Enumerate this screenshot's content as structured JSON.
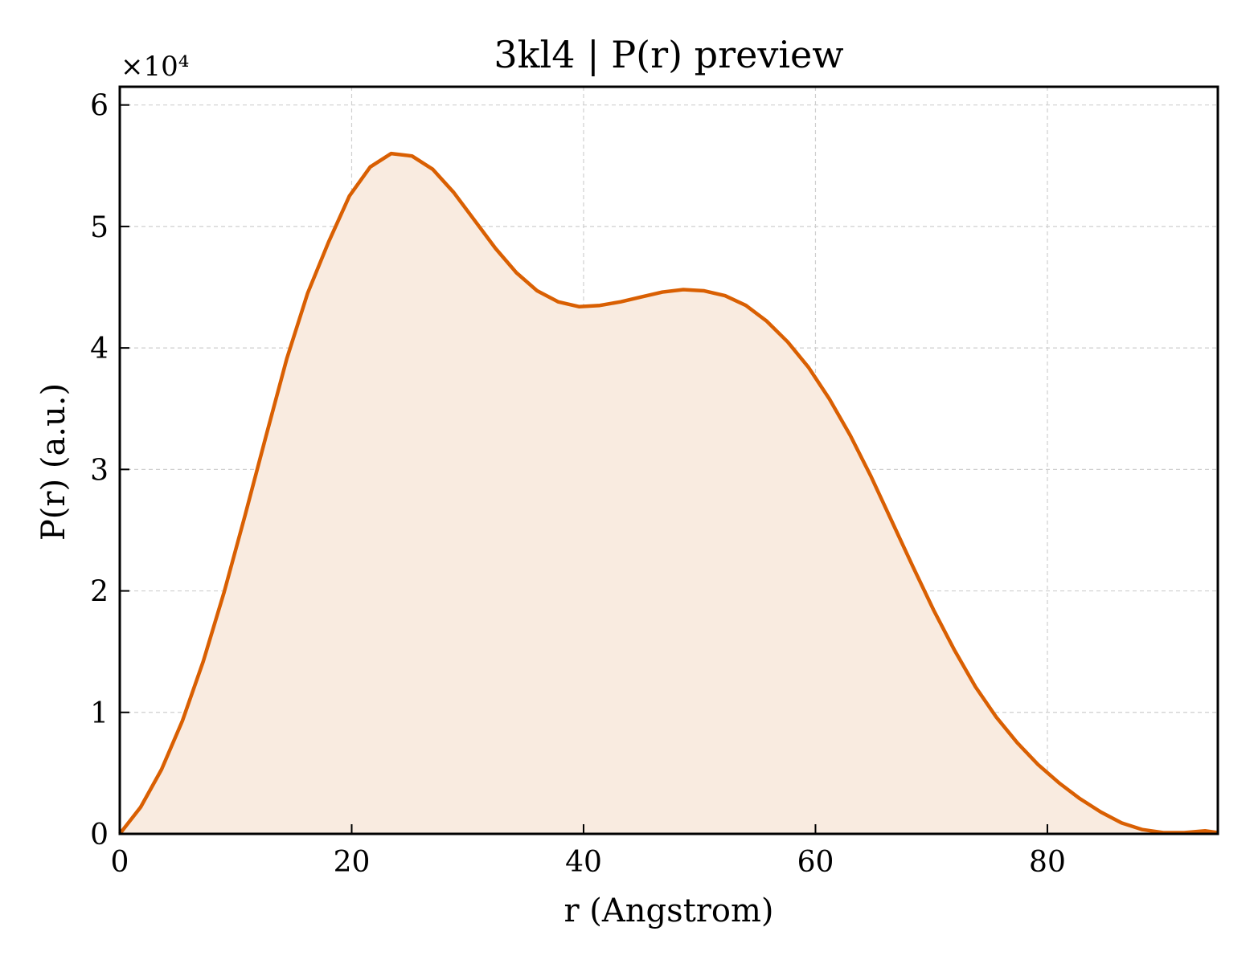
{
  "chart_data": {
    "type": "area",
    "title": "3kl4 | P(r) preview",
    "xlabel": "r (Angstrom)",
    "ylabel": "P(r) (a.u.)",
    "y_offset_label": "×10⁴",
    "xlim": [
      0,
      94.7
    ],
    "ylim": [
      0,
      6.15
    ],
    "xticks": [
      0,
      20,
      40,
      60,
      80
    ],
    "yticks": [
      0,
      1,
      2,
      3,
      4,
      5,
      6
    ],
    "grid": true,
    "line_color": "#d95f02",
    "fill_color": "#f9ebe0",
    "series": [
      {
        "x": [
          0,
          1.8,
          3.6,
          5.4,
          7.2,
          9.0,
          10.8,
          12.6,
          14.4,
          16.2,
          18.0,
          19.8,
          21.6,
          23.4,
          25.2,
          27.0,
          28.8,
          30.6,
          32.4,
          34.2,
          36.0,
          37.8,
          39.6,
          41.4,
          43.2,
          45.0,
          46.8,
          48.6,
          50.4,
          52.2,
          54.0,
          55.8,
          57.6,
          59.4,
          61.2,
          63.0,
          64.8,
          66.6,
          68.4,
          70.2,
          72.0,
          73.8,
          75.6,
          77.4,
          79.2,
          81.0,
          82.8,
          84.6,
          86.4,
          88.2,
          90.0,
          91.8,
          93.6,
          94.7
        ],
        "y": [
          0,
          0.22,
          0.53,
          0.93,
          1.42,
          1.99,
          2.62,
          3.27,
          3.91,
          4.45,
          4.87,
          5.25,
          5.49,
          5.6,
          5.58,
          5.47,
          5.28,
          5.05,
          4.82,
          4.62,
          4.47,
          4.38,
          4.34,
          4.35,
          4.38,
          4.42,
          4.46,
          4.48,
          4.47,
          4.43,
          4.35,
          4.22,
          4.05,
          3.84,
          3.58,
          3.28,
          2.94,
          2.57,
          2.2,
          1.84,
          1.51,
          1.21,
          0.96,
          0.75,
          0.57,
          0.42,
          0.29,
          0.18,
          0.09,
          0.035,
          0.01,
          0.01,
          0.025,
          0.01
        ]
      }
    ]
  }
}
